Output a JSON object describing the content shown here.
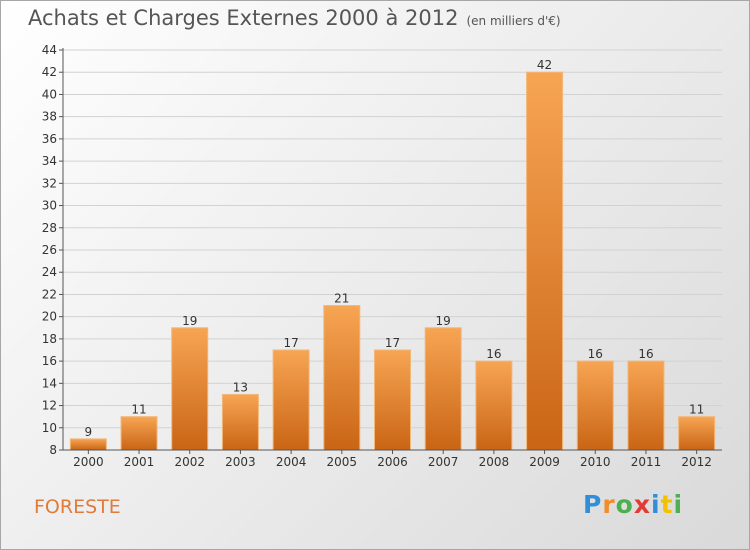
{
  "header": {
    "title": "Achats et Charges Externes 2000 à 2012",
    "subtitle": "(en milliers d'€)"
  },
  "footer": {
    "commune": "FORESTE",
    "logo_text": "Proxiti"
  },
  "colors": {
    "bar_light": "#f7a553",
    "bar_dark": "#c96515",
    "commune": "#e07b3a",
    "axis": "#555555"
  },
  "chart_data": {
    "type": "bar",
    "title": "Achats et Charges Externes 2000 à 2012",
    "subtitle": "(en milliers d'€)",
    "xlabel": "",
    "ylabel": "",
    "categories": [
      "2000",
      "2001",
      "2002",
      "2003",
      "2004",
      "2005",
      "2006",
      "2007",
      "2008",
      "2009",
      "2010",
      "2011",
      "2012"
    ],
    "values": [
      9,
      11,
      19,
      13,
      17,
      21,
      17,
      19,
      16,
      42,
      16,
      16,
      11
    ],
    "ylim": [
      8,
      44
    ],
    "yticks": [
      8,
      10,
      12,
      14,
      16,
      18,
      20,
      22,
      24,
      26,
      28,
      30,
      32,
      34,
      36,
      38,
      40,
      42,
      44
    ],
    "grid": true,
    "legend": "none"
  }
}
